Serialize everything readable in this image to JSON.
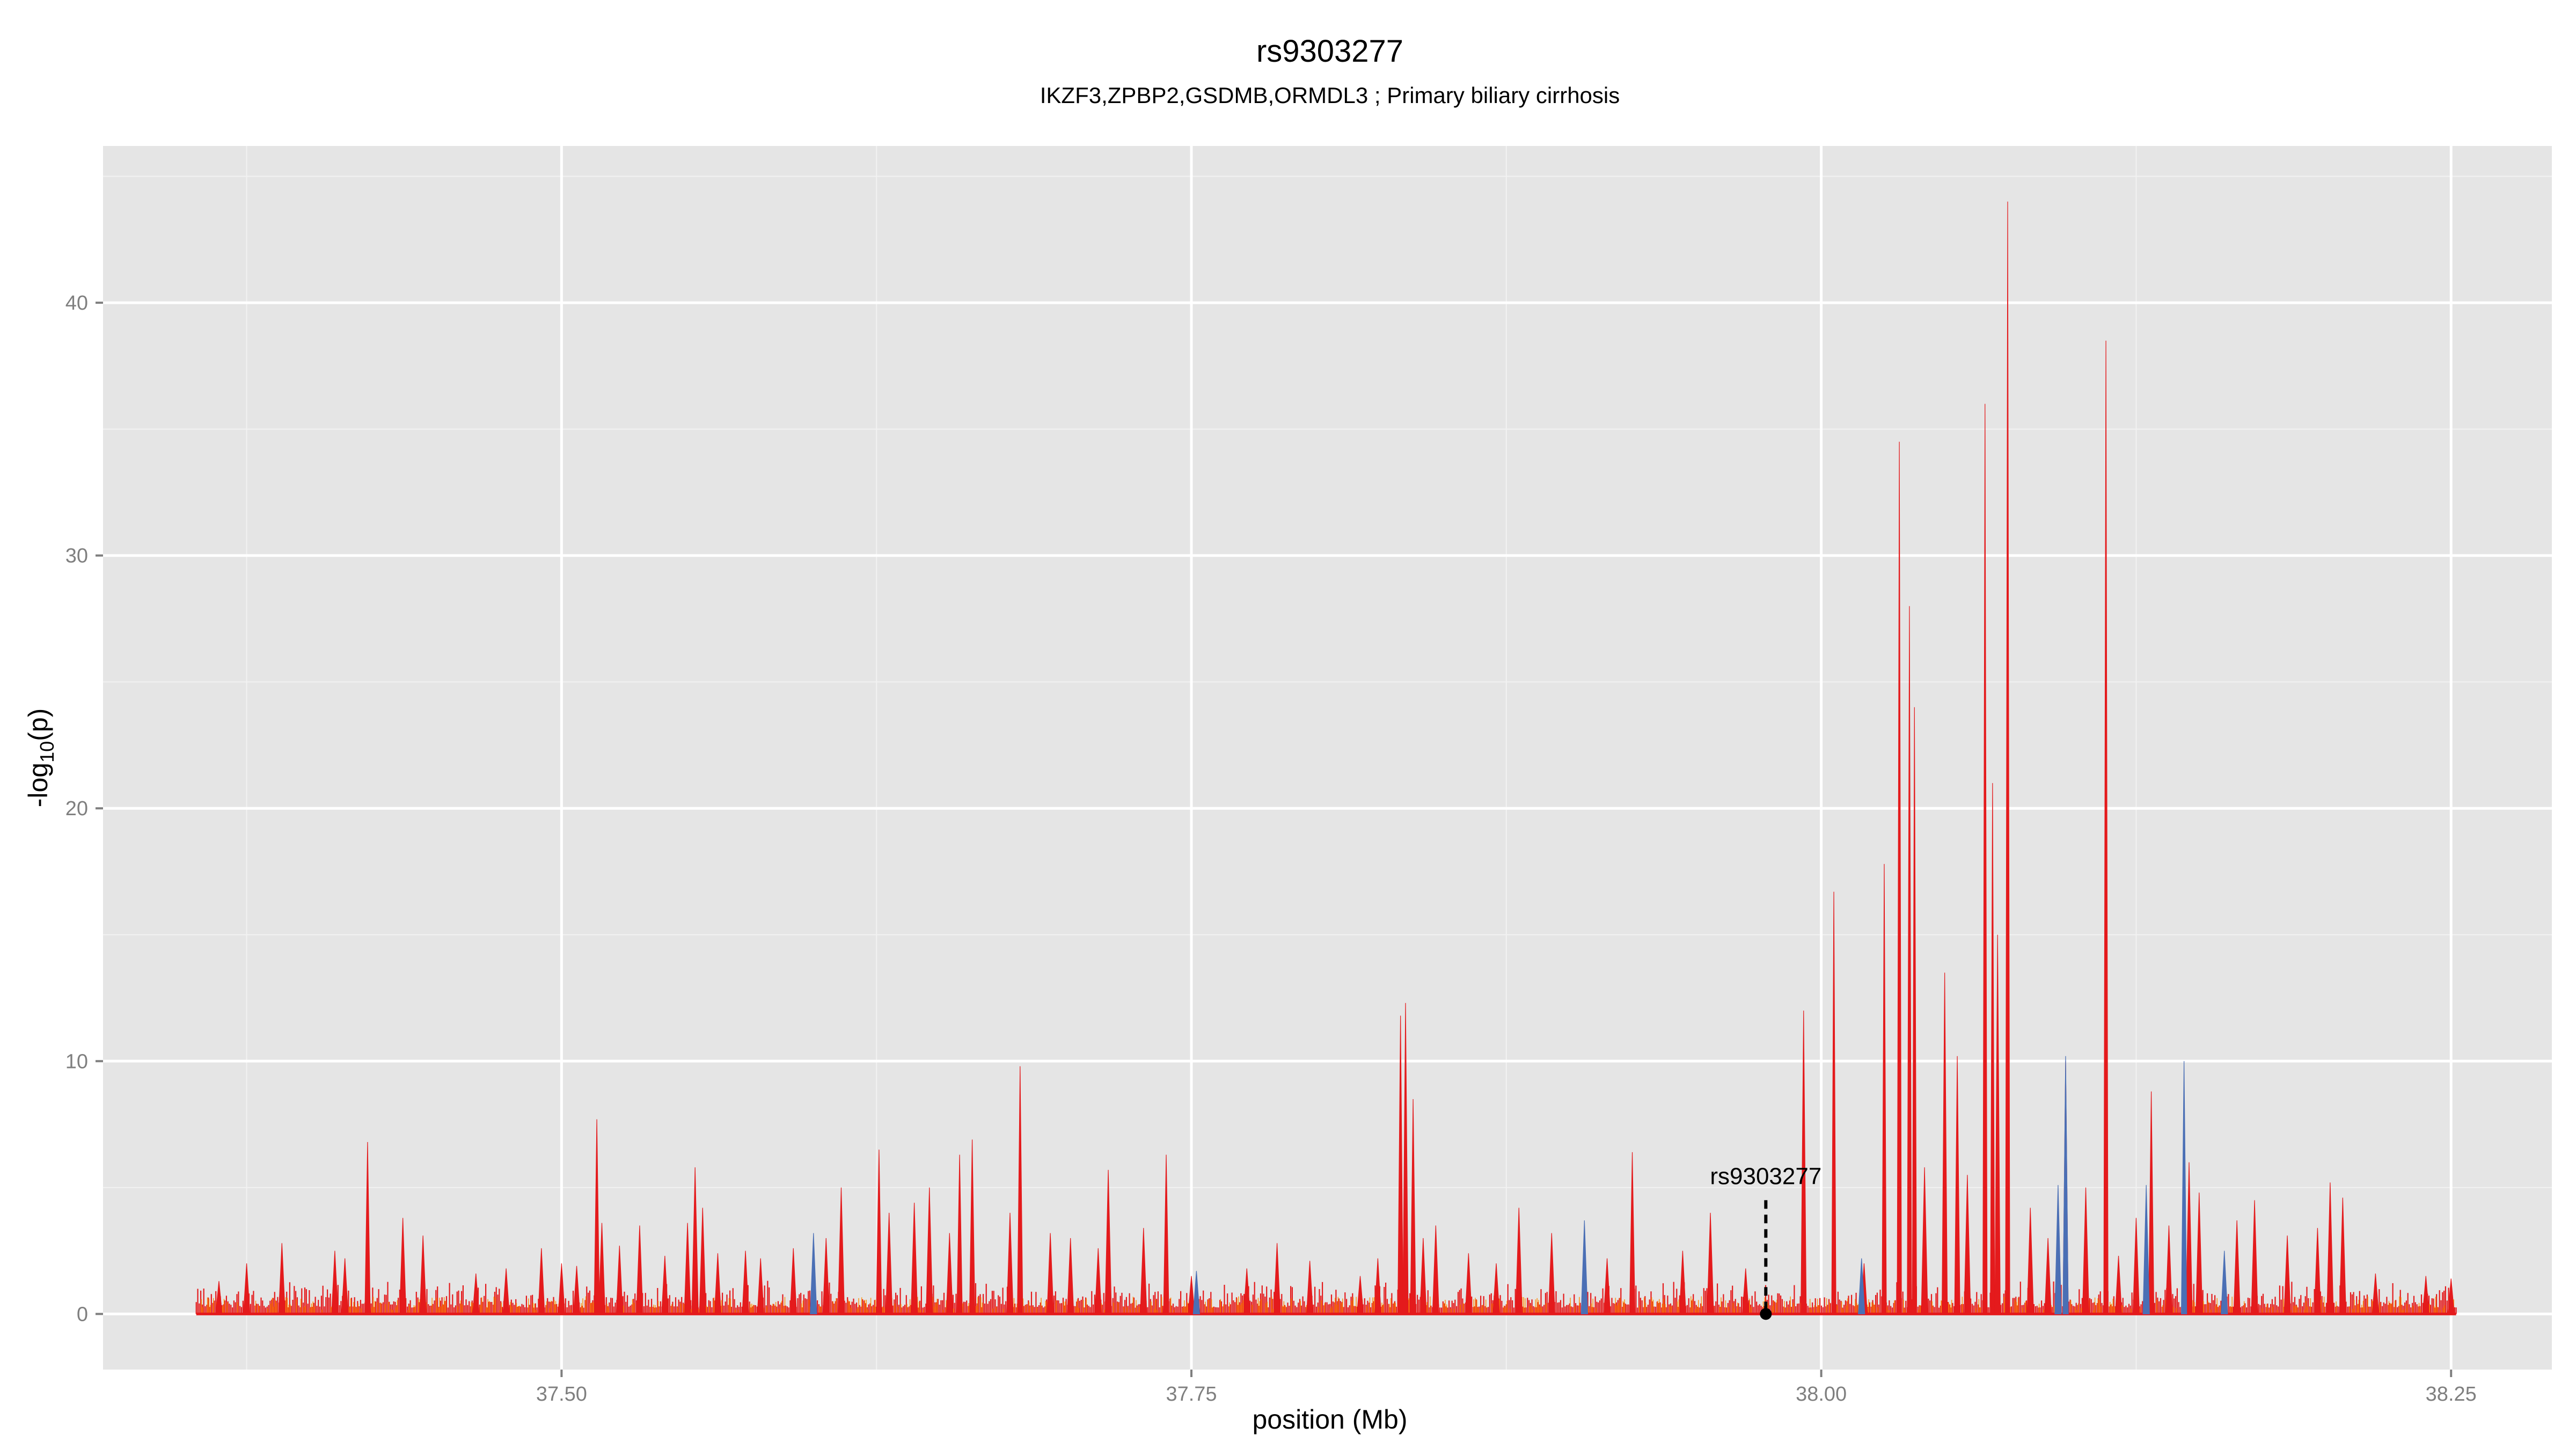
{
  "chart_data": {
    "type": "line",
    "title": "rs9303277",
    "subtitle": "IKZF3,ZPBP2,GSDMB,ORMDL3 ; Primary biliary cirrhosis",
    "xlabel": "position (Mb)",
    "ylabel": "-log10(p)",
    "ylabel_main": "-log",
    "ylabel_sub": "10",
    "ylabel_tail": "(p)",
    "xlim": [
      37.318,
      38.29
    ],
    "ylim": [
      -2.2,
      46.2
    ],
    "x_ticks": [
      37.5,
      37.75,
      38.0,
      38.25
    ],
    "x_tick_labels": [
      "37.50",
      "37.75",
      "38.00",
      "38.25"
    ],
    "y_ticks": [
      0,
      10,
      20,
      30,
      40
    ],
    "y_tick_labels": [
      "0",
      "10",
      "20",
      "30",
      "40"
    ],
    "grid": true,
    "background": "#e5e5e5",
    "colors": {
      "main": "#e41a1c",
      "low": "#ff8c00",
      "alt": "#4a6fb5",
      "highlight": "#000000"
    },
    "highlight": {
      "label": "rs9303277",
      "x": 37.978,
      "y": 0,
      "line_top": 4.5
    },
    "series": [
      {
        "color": "#e41a1c",
        "peaks": [
          [
            37.364,
            1.3
          ],
          [
            37.375,
            2.0
          ],
          [
            37.389,
            2.8
          ],
          [
            37.41,
            2.5
          ],
          [
            37.414,
            2.2
          ],
          [
            37.423,
            6.8
          ],
          [
            37.437,
            3.8
          ],
          [
            37.445,
            3.1
          ],
          [
            37.466,
            1.6
          ],
          [
            37.478,
            1.8
          ],
          [
            37.492,
            2.6
          ],
          [
            37.5,
            2.0
          ],
          [
            37.506,
            1.9
          ],
          [
            37.514,
            7.7
          ],
          [
            37.516,
            3.6
          ],
          [
            37.523,
            2.7
          ],
          [
            37.531,
            3.5
          ],
          [
            37.541,
            2.3
          ],
          [
            37.55,
            3.6
          ],
          [
            37.553,
            5.8
          ],
          [
            37.556,
            4.2
          ],
          [
            37.562,
            2.4
          ],
          [
            37.573,
            2.5
          ],
          [
            37.579,
            2.2
          ],
          [
            37.592,
            2.6
          ],
          [
            37.605,
            3.0
          ],
          [
            37.611,
            5.0
          ],
          [
            37.626,
            6.5
          ],
          [
            37.63,
            4.0
          ],
          [
            37.64,
            4.4
          ],
          [
            37.646,
            5.0
          ],
          [
            37.654,
            3.2
          ],
          [
            37.658,
            6.3
          ],
          [
            37.663,
            6.9
          ],
          [
            37.678,
            4.0
          ],
          [
            37.682,
            9.8
          ],
          [
            37.694,
            3.2
          ],
          [
            37.702,
            3.0
          ],
          [
            37.713,
            2.6
          ],
          [
            37.717,
            5.7
          ],
          [
            37.731,
            3.4
          ],
          [
            37.74,
            6.3
          ],
          [
            37.75,
            1.5
          ],
          [
            37.772,
            1.8
          ],
          [
            37.784,
            2.8
          ],
          [
            37.797,
            2.1
          ],
          [
            37.817,
            1.5
          ],
          [
            37.824,
            2.2
          ],
          [
            37.833,
            11.8
          ],
          [
            37.835,
            12.3
          ],
          [
            37.838,
            8.5
          ],
          [
            37.842,
            3.0
          ],
          [
            37.847,
            3.5
          ],
          [
            37.86,
            2.4
          ],
          [
            37.871,
            2.0
          ],
          [
            37.88,
            4.2
          ],
          [
            37.893,
            3.2
          ],
          [
            37.915,
            2.2
          ],
          [
            37.925,
            6.4
          ],
          [
            37.945,
            2.5
          ],
          [
            37.956,
            4.0
          ],
          [
            37.97,
            1.8
          ],
          [
            37.993,
            12.0
          ],
          [
            38.005,
            16.7
          ],
          [
            38.017,
            2.0
          ],
          [
            38.025,
            17.8
          ],
          [
            38.031,
            34.5
          ],
          [
            38.035,
            28.0
          ],
          [
            38.037,
            24.0
          ],
          [
            38.041,
            5.8
          ],
          [
            38.049,
            13.5
          ],
          [
            38.054,
            10.2
          ],
          [
            38.058,
            5.5
          ],
          [
            38.065,
            36.0
          ],
          [
            38.068,
            21.0
          ],
          [
            38.07,
            15.0
          ],
          [
            38.074,
            44.0
          ],
          [
            38.083,
            4.2
          ],
          [
            38.09,
            3.0
          ],
          [
            38.097,
            10.0
          ],
          [
            38.105,
            5.0
          ],
          [
            38.113,
            38.5
          ],
          [
            38.118,
            2.3
          ],
          [
            38.125,
            3.8
          ],
          [
            38.131,
            8.8
          ],
          [
            38.138,
            3.5
          ],
          [
            38.146,
            6.0
          ],
          [
            38.15,
            4.8
          ],
          [
            38.165,
            3.7
          ],
          [
            38.172,
            4.5
          ],
          [
            38.185,
            3.1
          ],
          [
            38.197,
            3.4
          ],
          [
            38.202,
            5.2
          ],
          [
            38.207,
            4.6
          ],
          [
            38.22,
            1.6
          ],
          [
            38.24,
            1.5
          ],
          [
            38.25,
            1.4
          ]
        ]
      },
      {
        "color": "#4a6fb5",
        "peaks": [
          [
            37.6,
            3.2
          ],
          [
            37.752,
            1.7
          ],
          [
            37.906,
            3.7
          ],
          [
            38.016,
            2.2
          ],
          [
            38.094,
            5.1
          ],
          [
            38.097,
            10.2
          ],
          [
            38.129,
            5.1
          ],
          [
            38.144,
            10.0
          ],
          [
            38.16,
            2.5
          ]
        ]
      }
    ]
  }
}
